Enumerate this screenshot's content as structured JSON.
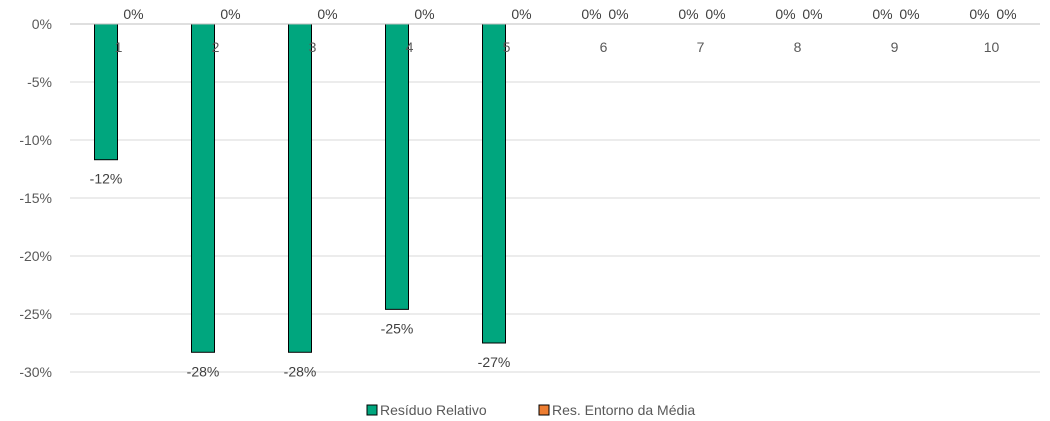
{
  "chart_data": {
    "type": "bar",
    "categories": [
      "1",
      "2",
      "3",
      "4",
      "5",
      "6",
      "7",
      "8",
      "9",
      "10"
    ],
    "series": [
      {
        "name": "Resíduo Relativo",
        "color": "#00A67E",
        "values": [
          -0.117,
          -0.283,
          -0.283,
          -0.246,
          -0.275,
          0,
          0,
          0,
          0,
          0
        ],
        "labels": [
          "-12%",
          "-28%",
          "-28%",
          "-25%",
          "-27%",
          "0%",
          "0%",
          "0%",
          "0%",
          "0%"
        ]
      },
      {
        "name": "Res. Entorno da Média",
        "color": "#ED7D31",
        "values": [
          0,
          0,
          0,
          0,
          0,
          0,
          0,
          0,
          0,
          0
        ],
        "labels": [
          "0%",
          "0%",
          "0%",
          "0%",
          "0%",
          "0%",
          "0%",
          "0%",
          "0%",
          "0%"
        ]
      }
    ],
    "ylim": [
      -0.3,
      0
    ],
    "yticks": [
      0,
      -0.05,
      -0.1,
      -0.15,
      -0.2,
      -0.25,
      -0.3
    ],
    "ytick_labels": [
      "0%",
      "-5%",
      "-10%",
      "-15%",
      "-20%",
      "-25%",
      "-30%"
    ],
    "grid": true,
    "legend": "bottom"
  }
}
